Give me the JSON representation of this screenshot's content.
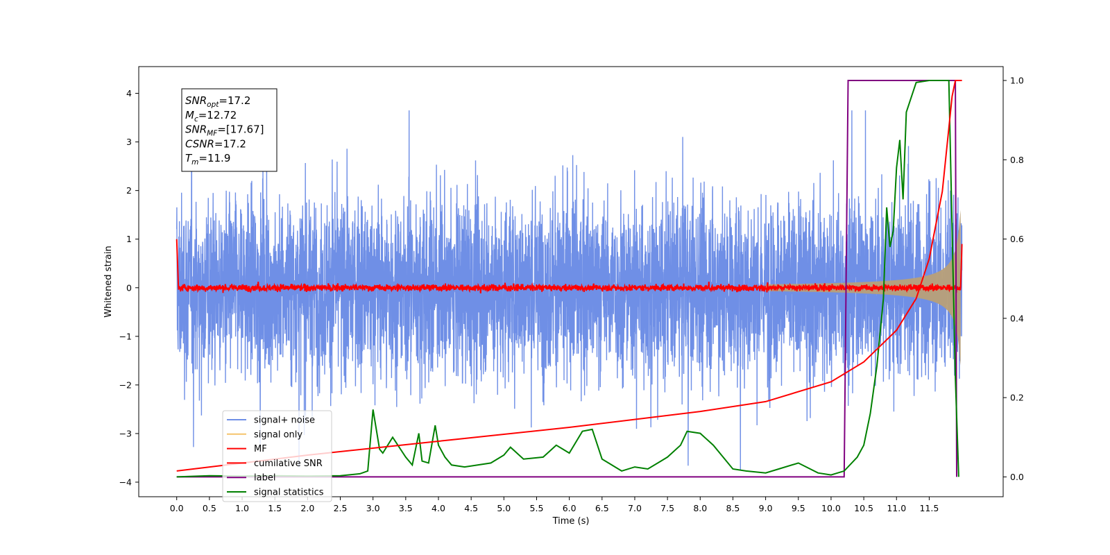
{
  "chart_data": {
    "type": "line",
    "xlabel": "Time (s)",
    "ylabel": "Whitened strain",
    "xlim": [
      -0.58,
      12.63
    ],
    "ylim": [
      -4.3,
      4.55
    ],
    "y2lim": [
      -0.05,
      1.035
    ],
    "x_ticks": [
      "0.0",
      "0.5",
      "1.0",
      "1.5",
      "2.0",
      "2.5",
      "3.0",
      "3.5",
      "4.0",
      "4.5",
      "5.0",
      "5.5",
      "6.0",
      "6.5",
      "7.0",
      "7.5",
      "8.0",
      "8.5",
      "9.0",
      "9.5",
      "10.0",
      "10.5",
      "11.0",
      "11.5"
    ],
    "y_ticks": [
      "−4",
      "−3",
      "−2",
      "−1",
      "0",
      "1",
      "2",
      "3",
      "4"
    ],
    "y2_ticks": [
      "0.0",
      "0.2",
      "0.4",
      "0.6",
      "0.8",
      "1.0"
    ],
    "info_box": [
      {
        "base": "SNR",
        "sub": "opt",
        "value": "=17.2"
      },
      {
        "base": "M",
        "sub": "c",
        "value": "=12.72"
      },
      {
        "base": "SNR",
        "sub": "MF",
        "value": "=[17.67]"
      },
      {
        "base": "CSNR",
        "sub": "",
        "value": "=17.2"
      },
      {
        "base": "T",
        "sub": "m",
        "value": "=11.9"
      }
    ],
    "legend_position": "lower-left",
    "series": [
      {
        "name": "signal+ noise",
        "color": "#6f8fe6",
        "axis": "left",
        "description": "whitened noise, std approx 1 strain, spanning 0 to 12.0 s"
      },
      {
        "name": "signal only",
        "color": "#f5c36b",
        "axis": "left",
        "description": "chirp envelope amplitude growing to about 1.5 near 11.9 s"
      },
      {
        "name": "MF",
        "color": "#ff0000",
        "axis": "left",
        "description": "matched-filter output near 0, spike to 1.0 at 0 s and 0.9 at 12.0 s"
      },
      {
        "name": "cumilative SNR",
        "color": "#ff0000",
        "axis": "right",
        "x": [
          0.0,
          2.0,
          4.0,
          6.0,
          8.0,
          9.0,
          10.0,
          10.5,
          11.0,
          11.3,
          11.5,
          11.7,
          11.8,
          11.85,
          11.9,
          12.0
        ],
        "y": [
          0.015,
          0.055,
          0.09,
          0.125,
          0.165,
          0.19,
          0.24,
          0.29,
          0.37,
          0.45,
          0.55,
          0.72,
          0.88,
          0.96,
          1.0,
          1.0
        ]
      },
      {
        "name": "label",
        "color": "#800080",
        "axis": "right",
        "x": [
          0.0,
          10.2,
          10.26,
          11.9,
          11.92
        ],
        "y": [
          0.0,
          0.0,
          1.0,
          1.0,
          0.0
        ]
      },
      {
        "name": "signal statistics",
        "color": "#008000",
        "axis": "right",
        "x": [
          0.0,
          0.5,
          1.0,
          1.5,
          2.0,
          2.5,
          2.8,
          2.92,
          3.0,
          3.1,
          3.15,
          3.3,
          3.5,
          3.6,
          3.7,
          3.75,
          3.85,
          3.95,
          4.0,
          4.1,
          4.2,
          4.4,
          4.6,
          4.8,
          5.0,
          5.1,
          5.3,
          5.6,
          5.8,
          5.9,
          6.0,
          6.2,
          6.35,
          6.5,
          6.6,
          6.8,
          7.0,
          7.2,
          7.4,
          7.5,
          7.7,
          7.8,
          8.0,
          8.2,
          8.5,
          8.7,
          9.0,
          9.2,
          9.5,
          9.8,
          10.0,
          10.2,
          10.4,
          10.5,
          10.6,
          10.7,
          10.8,
          10.85,
          10.9,
          10.95,
          11.0,
          11.05,
          11.1,
          11.15,
          11.3,
          11.5,
          11.8,
          11.9,
          11.95
        ],
        "y": [
          0.0,
          0.003,
          0.002,
          0.003,
          0.002,
          0.003,
          0.008,
          0.015,
          0.17,
          0.07,
          0.06,
          0.1,
          0.05,
          0.03,
          0.11,
          0.04,
          0.035,
          0.13,
          0.08,
          0.05,
          0.03,
          0.025,
          0.03,
          0.035,
          0.055,
          0.075,
          0.045,
          0.05,
          0.08,
          0.07,
          0.06,
          0.115,
          0.12,
          0.045,
          0.035,
          0.015,
          0.025,
          0.02,
          0.04,
          0.05,
          0.08,
          0.115,
          0.11,
          0.08,
          0.02,
          0.015,
          0.01,
          0.02,
          0.035,
          0.01,
          0.005,
          0.015,
          0.05,
          0.08,
          0.16,
          0.28,
          0.45,
          0.68,
          0.58,
          0.62,
          0.78,
          0.85,
          0.7,
          0.92,
          0.995,
          1.0,
          1.0,
          0.25,
          0.0
        ]
      }
    ]
  }
}
